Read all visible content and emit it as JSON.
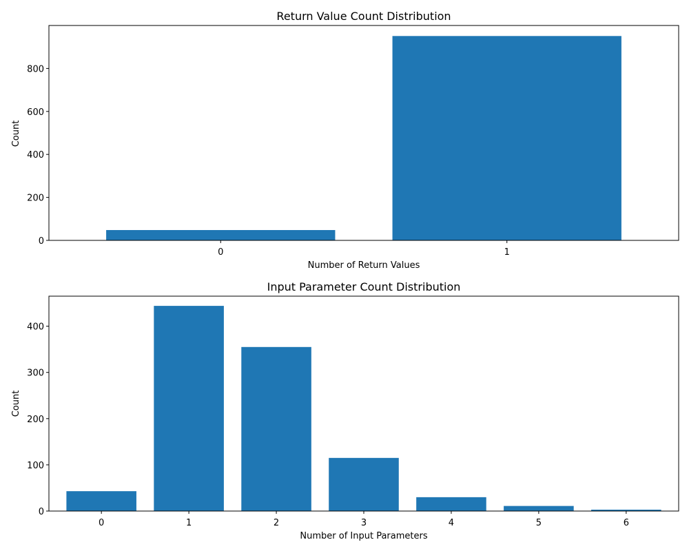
{
  "chart_data": [
    {
      "type": "bar",
      "title": "Return Value Count Distribution",
      "xlabel": "Number of Return Values",
      "ylabel": "Count",
      "categories": [
        "0",
        "1"
      ],
      "values": [
        48,
        951
      ],
      "ylim": [
        0,
        1000
      ],
      "yticks": [
        0,
        200,
        400,
        600,
        800
      ],
      "color": "#1f77b4",
      "grid": false
    },
    {
      "type": "bar",
      "title": "Input Parameter Count Distribution",
      "xlabel": "Number of Input Parameters",
      "ylabel": "Count",
      "categories": [
        "0",
        "1",
        "2",
        "3",
        "4",
        "5",
        "6"
      ],
      "values": [
        43,
        444,
        355,
        115,
        30,
        11,
        3
      ],
      "ylim": [
        0,
        465
      ],
      "yticks": [
        0,
        100,
        200,
        300,
        400
      ],
      "color": "#1f77b4",
      "grid": false
    }
  ]
}
